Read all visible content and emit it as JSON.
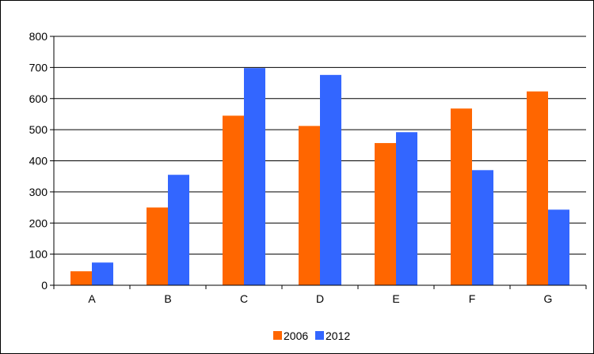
{
  "chart_data": {
    "type": "bar",
    "title": "",
    "xlabel": "",
    "ylabel": "",
    "categories": [
      "A",
      "B",
      "C",
      "D",
      "E",
      "F",
      "G"
    ],
    "series": [
      {
        "name": "2006",
        "values": [
          45,
          250,
          545,
          512,
          457,
          568,
          623
        ],
        "color": "#ff6600"
      },
      {
        "name": "2012",
        "values": [
          73,
          355,
          698,
          676,
          492,
          370,
          243
        ],
        "color": "#3366ff"
      }
    ],
    "ylim": [
      0,
      800
    ],
    "yticks": [
      "0",
      "100",
      "200",
      "300",
      "400",
      "500",
      "600",
      "700",
      "800"
    ],
    "grid": true,
    "legend_position": "bottom"
  }
}
